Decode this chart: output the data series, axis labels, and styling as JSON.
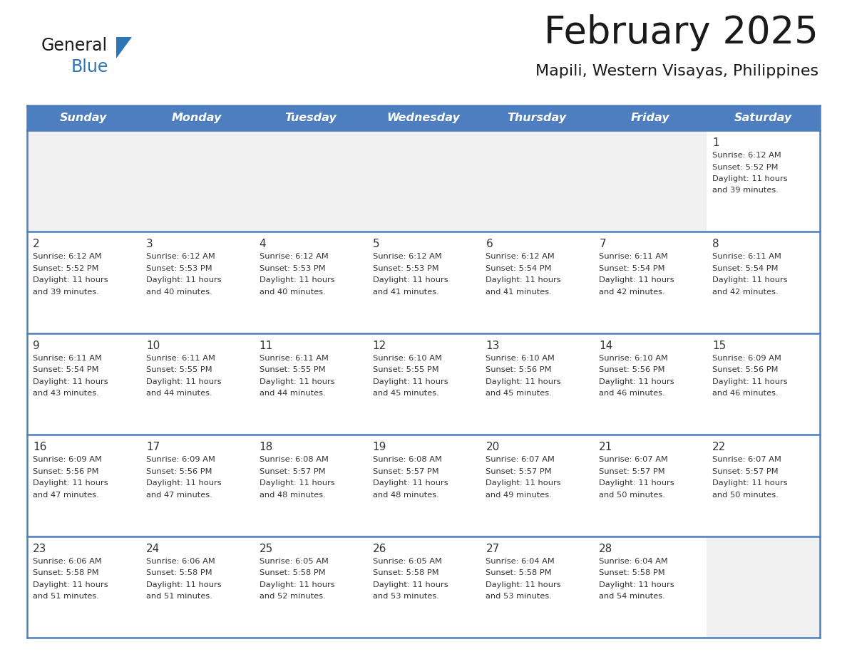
{
  "title": "February 2025",
  "subtitle": "Mapili, Western Visayas, Philippines",
  "days_of_week": [
    "Sunday",
    "Monday",
    "Tuesday",
    "Wednesday",
    "Thursday",
    "Friday",
    "Saturday"
  ],
  "header_bg": "#4d7ebf",
  "header_text": "#FFFFFF",
  "border_color": "#4d7ebf",
  "text_color": "#333333",
  "day_num_color": "#333333",
  "logo_general_color": "#1a1a1a",
  "logo_blue_color": "#2E75B6",
  "logo_triangle_color": "#2E75B6",
  "title_color": "#1a1a1a",
  "subtitle_color": "#1a1a1a",
  "cell_bg_empty": "#f0f0f0",
  "cell_bg_filled": "#ffffff",
  "calendar_data": [
    [
      null,
      null,
      null,
      null,
      null,
      null,
      {
        "day": 1,
        "sunrise": "6:12 AM",
        "sunset": "5:52 PM",
        "daylight": "11 hours and 39 minutes."
      }
    ],
    [
      {
        "day": 2,
        "sunrise": "6:12 AM",
        "sunset": "5:52 PM",
        "daylight": "11 hours and 39 minutes."
      },
      {
        "day": 3,
        "sunrise": "6:12 AM",
        "sunset": "5:53 PM",
        "daylight": "11 hours and 40 minutes."
      },
      {
        "day": 4,
        "sunrise": "6:12 AM",
        "sunset": "5:53 PM",
        "daylight": "11 hours and 40 minutes."
      },
      {
        "day": 5,
        "sunrise": "6:12 AM",
        "sunset": "5:53 PM",
        "daylight": "11 hours and 41 minutes."
      },
      {
        "day": 6,
        "sunrise": "6:12 AM",
        "sunset": "5:54 PM",
        "daylight": "11 hours and 41 minutes."
      },
      {
        "day": 7,
        "sunrise": "6:11 AM",
        "sunset": "5:54 PM",
        "daylight": "11 hours and 42 minutes."
      },
      {
        "day": 8,
        "sunrise": "6:11 AM",
        "sunset": "5:54 PM",
        "daylight": "11 hours and 42 minutes."
      }
    ],
    [
      {
        "day": 9,
        "sunrise": "6:11 AM",
        "sunset": "5:54 PM",
        "daylight": "11 hours and 43 minutes."
      },
      {
        "day": 10,
        "sunrise": "6:11 AM",
        "sunset": "5:55 PM",
        "daylight": "11 hours and 44 minutes."
      },
      {
        "day": 11,
        "sunrise": "6:11 AM",
        "sunset": "5:55 PM",
        "daylight": "11 hours and 44 minutes."
      },
      {
        "day": 12,
        "sunrise": "6:10 AM",
        "sunset": "5:55 PM",
        "daylight": "11 hours and 45 minutes."
      },
      {
        "day": 13,
        "sunrise": "6:10 AM",
        "sunset": "5:56 PM",
        "daylight": "11 hours and 45 minutes."
      },
      {
        "day": 14,
        "sunrise": "6:10 AM",
        "sunset": "5:56 PM",
        "daylight": "11 hours and 46 minutes."
      },
      {
        "day": 15,
        "sunrise": "6:09 AM",
        "sunset": "5:56 PM",
        "daylight": "11 hours and 46 minutes."
      }
    ],
    [
      {
        "day": 16,
        "sunrise": "6:09 AM",
        "sunset": "5:56 PM",
        "daylight": "11 hours and 47 minutes."
      },
      {
        "day": 17,
        "sunrise": "6:09 AM",
        "sunset": "5:56 PM",
        "daylight": "11 hours and 47 minutes."
      },
      {
        "day": 18,
        "sunrise": "6:08 AM",
        "sunset": "5:57 PM",
        "daylight": "11 hours and 48 minutes."
      },
      {
        "day": 19,
        "sunrise": "6:08 AM",
        "sunset": "5:57 PM",
        "daylight": "11 hours and 48 minutes."
      },
      {
        "day": 20,
        "sunrise": "6:07 AM",
        "sunset": "5:57 PM",
        "daylight": "11 hours and 49 minutes."
      },
      {
        "day": 21,
        "sunrise": "6:07 AM",
        "sunset": "5:57 PM",
        "daylight": "11 hours and 50 minutes."
      },
      {
        "day": 22,
        "sunrise": "6:07 AM",
        "sunset": "5:57 PM",
        "daylight": "11 hours and 50 minutes."
      }
    ],
    [
      {
        "day": 23,
        "sunrise": "6:06 AM",
        "sunset": "5:58 PM",
        "daylight": "11 hours and 51 minutes."
      },
      {
        "day": 24,
        "sunrise": "6:06 AM",
        "sunset": "5:58 PM",
        "daylight": "11 hours and 51 minutes."
      },
      {
        "day": 25,
        "sunrise": "6:05 AM",
        "sunset": "5:58 PM",
        "daylight": "11 hours and 52 minutes."
      },
      {
        "day": 26,
        "sunrise": "6:05 AM",
        "sunset": "5:58 PM",
        "daylight": "11 hours and 53 minutes."
      },
      {
        "day": 27,
        "sunrise": "6:04 AM",
        "sunset": "5:58 PM",
        "daylight": "11 hours and 53 minutes."
      },
      {
        "day": 28,
        "sunrise": "6:04 AM",
        "sunset": "5:58 PM",
        "daylight": "11 hours and 54 minutes."
      },
      null
    ]
  ]
}
